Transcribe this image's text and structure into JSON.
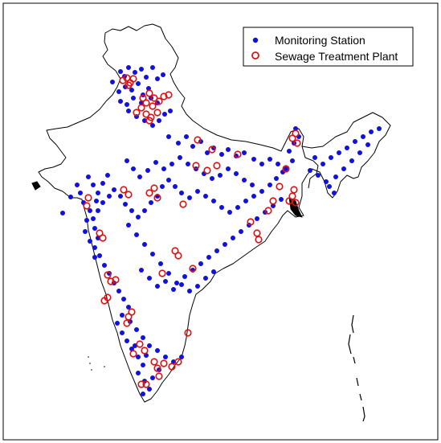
{
  "legend": {
    "monitoring_label": "Monitoring Station",
    "stp_label": "Sewage Treatment Plant"
  },
  "colors": {
    "monitoring": "#1010e0",
    "stp": "#e01010",
    "outline": "#000000"
  },
  "monitoring_stations": [
    [
      150,
      89
    ],
    [
      155,
      95
    ],
    [
      160,
      84
    ],
    [
      168,
      90
    ],
    [
      176,
      86
    ],
    [
      182,
      96
    ],
    [
      190,
      84
    ],
    [
      196,
      98
    ],
    [
      203,
      93
    ],
    [
      172,
      104
    ],
    [
      185,
      110
    ],
    [
      178,
      118
    ],
    [
      166,
      122
    ],
    [
      158,
      130
    ],
    [
      150,
      126
    ],
    [
      160,
      138
    ],
    [
      170,
      145
    ],
    [
      180,
      150
    ],
    [
      190,
      156
    ],
    [
      198,
      150
    ],
    [
      205,
      142
    ],
    [
      212,
      138
    ],
    [
      196,
      128
    ],
    [
      188,
      122
    ],
    [
      176,
      128
    ],
    [
      164,
      112
    ],
    [
      140,
      102
    ],
    [
      148,
      114
    ],
    [
      156,
      108
    ],
    [
      210,
      170
    ],
    [
      222,
      178
    ],
    [
      232,
      170
    ],
    [
      240,
      182
    ],
    [
      250,
      176
    ],
    [
      258,
      190
    ],
    [
      266,
      184
    ],
    [
      276,
      192
    ],
    [
      284,
      186
    ],
    [
      294,
      194
    ],
    [
      304,
      190
    ],
    [
      316,
      198
    ],
    [
      326,
      204
    ],
    [
      336,
      198
    ],
    [
      346,
      204
    ],
    [
      352,
      214
    ],
    [
      344,
      222
    ],
    [
      336,
      230
    ],
    [
      326,
      238
    ],
    [
      316,
      244
    ],
    [
      306,
      250
    ],
    [
      296,
      258
    ],
    [
      286,
      264
    ],
    [
      276,
      258
    ],
    [
      266,
      250
    ],
    [
      256,
      244
    ],
    [
      246,
      238
    ],
    [
      236,
      246
    ],
    [
      226,
      240
    ],
    [
      218,
      232
    ],
    [
      210,
      224
    ],
    [
      202,
      232
    ],
    [
      196,
      244
    ],
    [
      188,
      252
    ],
    [
      180,
      262
    ],
    [
      172,
      270
    ],
    [
      164,
      262
    ],
    [
      156,
      254
    ],
    [
      150,
      244
    ],
    [
      142,
      236
    ],
    [
      136,
      244
    ],
    [
      128,
      252
    ],
    [
      122,
      262
    ],
    [
      116,
      272
    ],
    [
      118,
      284
    ],
    [
      122,
      296
    ],
    [
      118,
      308
    ],
    [
      124,
      318
    ],
    [
      130,
      330
    ],
    [
      136,
      340
    ],
    [
      142,
      352
    ],
    [
      148,
      362
    ],
    [
      154,
      372
    ],
    [
      160,
      382
    ],
    [
      152,
      392
    ],
    [
      146,
      402
    ],
    [
      152,
      414
    ],
    [
      158,
      424
    ],
    [
      164,
      434
    ],
    [
      172,
      444
    ],
    [
      178,
      454
    ],
    [
      172,
      464
    ],
    [
      180,
      474
    ],
    [
      186,
      484
    ],
    [
      178,
      490
    ],
    [
      110,
      220
    ],
    [
      116,
      230
    ],
    [
      122,
      240
    ],
    [
      128,
      228
    ],
    [
      134,
      218
    ],
    [
      120,
      250
    ],
    [
      112,
      262
    ],
    [
      108,
      274
    ],
    [
      106,
      288
    ],
    [
      112,
      300
    ],
    [
      118,
      320
    ],
    [
      158,
      200
    ],
    [
      166,
      210
    ],
    [
      174,
      220
    ],
    [
      184,
      212
    ],
    [
      194,
      202
    ],
    [
      204,
      210
    ],
    [
      214,
      204
    ],
    [
      224,
      196
    ],
    [
      234,
      204
    ],
    [
      244,
      210
    ],
    [
      254,
      216
    ],
    [
      264,
      222
    ],
    [
      274,
      218
    ],
    [
      284,
      210
    ],
    [
      294,
      216
    ],
    [
      304,
      224
    ],
    [
      314,
      230
    ],
    [
      160,
      280
    ],
    [
      170,
      292
    ],
    [
      180,
      304
    ],
    [
      190,
      316
    ],
    [
      200,
      328
    ],
    [
      210,
      340
    ],
    [
      220,
      352
    ],
    [
      230,
      344
    ],
    [
      240,
      336
    ],
    [
      250,
      328
    ],
    [
      260,
      320
    ],
    [
      270,
      312
    ],
    [
      280,
      304
    ],
    [
      290,
      296
    ],
    [
      300,
      288
    ],
    [
      310,
      280
    ],
    [
      320,
      272
    ],
    [
      330,
      264
    ],
    [
      340,
      256
    ],
    [
      350,
      248
    ],
    [
      176,
      336
    ],
    [
      186,
      346
    ],
    [
      196,
      356
    ],
    [
      206,
      350
    ],
    [
      216,
      360
    ],
    [
      226,
      354
    ],
    [
      236,
      362
    ],
    [
      246,
      356
    ],
    [
      256,
      346
    ],
    [
      266,
      338
    ],
    [
      162,
      400
    ],
    [
      170,
      410
    ],
    [
      178,
      420
    ],
    [
      186,
      430
    ],
    [
      196,
      436
    ],
    [
      206,
      444
    ],
    [
      216,
      450
    ],
    [
      226,
      444
    ],
    [
      190,
      470
    ],
    [
      198,
      460
    ],
    [
      182,
      442
    ],
    [
      168,
      430
    ],
    [
      368,
      160
    ],
    [
      372,
      170
    ],
    [
      366,
      178
    ],
    [
      360,
      188
    ],
    [
      364,
      200
    ],
    [
      356,
      210
    ],
    [
      392,
      196
    ],
    [
      402,
      204
    ],
    [
      412,
      196
    ],
    [
      422,
      190
    ],
    [
      432,
      184
    ],
    [
      442,
      176
    ],
    [
      452,
      170
    ],
    [
      462,
      164
    ],
    [
      472,
      160
    ],
    [
      458,
      180
    ],
    [
      448,
      190
    ],
    [
      438,
      200
    ],
    [
      428,
      210
    ],
    [
      418,
      220
    ],
    [
      410,
      232
    ],
    [
      416,
      240
    ],
    [
      406,
      226
    ],
    [
      396,
      218
    ],
    [
      386,
      212
    ],
    [
      78,
      265
    ],
    [
      100,
      240
    ],
    [
      104,
      252
    ],
    [
      96,
      230
    ],
    [
      88,
      245
    ]
  ],
  "sewage_plants": [
    [
      153,
      100
    ],
    [
      158,
      97
    ],
    [
      162,
      103
    ],
    [
      166,
      98
    ],
    [
      160,
      106
    ],
    [
      186,
      116
    ],
    [
      192,
      122
    ],
    [
      198,
      126
    ],
    [
      204,
      120
    ],
    [
      210,
      118
    ],
    [
      182,
      128
    ],
    [
      176,
      134
    ],
    [
      170,
      140
    ],
    [
      182,
      142
    ],
    [
      188,
      146
    ],
    [
      196,
      140
    ],
    [
      186,
      150
    ],
    [
      190,
      132
    ],
    [
      178,
      122
    ],
    [
      110,
      246
    ],
    [
      108,
      256
    ],
    [
      128,
      296
    ],
    [
      124,
      290
    ],
    [
      134,
      342
    ],
    [
      138,
      350
    ],
    [
      144,
      348
    ],
    [
      130,
      374
    ],
    [
      134,
      370
    ],
    [
      160,
      394
    ],
    [
      164,
      388
    ],
    [
      158,
      402
    ],
    [
      154,
      236
    ],
    [
      160,
      242
    ],
    [
      186,
      240
    ],
    [
      192,
      234
    ],
    [
      196,
      246
    ],
    [
      228,
      254
    ],
    [
      246,
      174
    ],
    [
      264,
      186
    ],
    [
      244,
      206
    ],
    [
      258,
      212
    ],
    [
      270,
      206
    ],
    [
      296,
      192
    ],
    [
      218,
      312
    ],
    [
      222,
      318
    ],
    [
      202,
      340
    ],
    [
      240,
      334
    ],
    [
      312,
      276
    ],
    [
      320,
      290
    ],
    [
      322,
      298
    ],
    [
      334,
      262
    ],
    [
      340,
      250
    ],
    [
      348,
      232
    ],
    [
      356,
      210
    ],
    [
      364,
      244
    ],
    [
      366,
      236
    ],
    [
      360,
      250
    ],
    [
      368,
      252
    ],
    [
      364,
      172
    ],
    [
      368,
      166
    ],
    [
      370,
      178
    ],
    [
      174,
      428
    ],
    [
      180,
      436
    ],
    [
      166,
      440
    ],
    [
      192,
      450
    ],
    [
      196,
      458
    ],
    [
      204,
      452
    ],
    [
      214,
      456
    ],
    [
      222,
      450
    ],
    [
      198,
      468
    ],
    [
      182,
      478
    ],
    [
      234,
      414
    ],
    [
      176,
      478
    ]
  ]
}
